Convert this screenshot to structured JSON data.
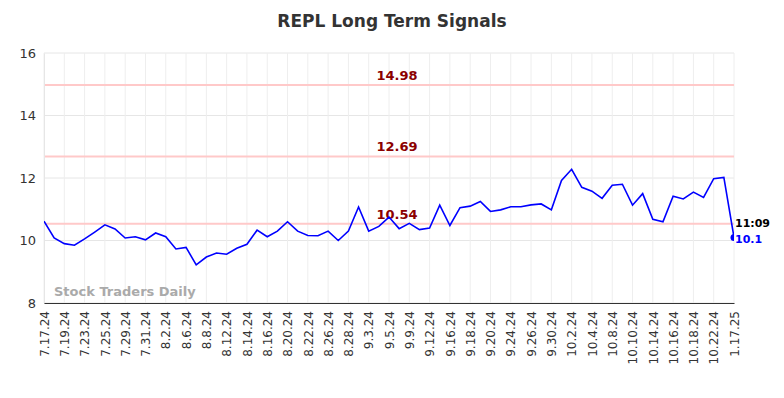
{
  "chart_data": {
    "type": "line",
    "title": "REPL Long Term Signals",
    "categories": [
      "7.17.24",
      null,
      "7.19.24",
      null,
      "7.23.24",
      null,
      "7.25.24",
      null,
      "7.29.24",
      null,
      "7.31.24",
      null,
      "8.2.24",
      null,
      "8.6.24",
      null,
      "8.8.24",
      null,
      "8.12.24",
      null,
      "8.14.24",
      null,
      "8.16.24",
      null,
      "8.20.24",
      null,
      "8.22.24",
      null,
      "8.26.24",
      null,
      "8.28.24",
      null,
      "9.3.24",
      null,
      "9.5.24",
      null,
      "9.9.24",
      null,
      "9.12.24",
      null,
      "9.16.24",
      null,
      "9.18.24",
      null,
      "9.20.24",
      null,
      "9.24.24",
      null,
      "9.26.24",
      null,
      "9.30.24",
      null,
      "10.2.24",
      null,
      "10.4.24",
      null,
      "10.8.24",
      null,
      "10.10.24",
      null,
      "10.14.24",
      null,
      "10.16.24",
      null,
      "10.18.24",
      null,
      "10.22.24",
      null,
      "1.17.25"
    ],
    "series": [
      {
        "name": "REPL",
        "color": "#0000ff",
        "values": [
          10.62,
          10.08,
          9.9,
          9.85,
          10.05,
          10.27,
          10.5,
          10.37,
          10.08,
          10.12,
          10.02,
          10.24,
          10.12,
          9.73,
          9.78,
          9.22,
          9.47,
          9.6,
          9.56,
          9.75,
          9.88,
          10.33,
          10.12,
          10.3,
          10.6,
          10.3,
          10.16,
          10.15,
          10.3,
          10.0,
          10.3,
          11.07,
          10.3,
          10.45,
          10.75,
          10.38,
          10.55,
          10.35,
          10.4,
          11.13,
          10.48,
          11.05,
          11.1,
          11.25,
          10.93,
          10.98,
          11.08,
          11.08,
          11.14,
          11.17,
          10.98,
          11.92,
          12.28,
          11.7,
          11.58,
          11.35,
          11.77,
          11.8,
          11.13,
          11.5,
          10.68,
          10.6,
          11.42,
          11.33,
          11.55,
          11.38,
          11.98,
          12.02,
          10.1
        ]
      }
    ],
    "ylim": [
      8,
      16
    ],
    "yticks": [
      8,
      10,
      12,
      14,
      16
    ],
    "grid": true,
    "reference_lines": [
      14.98,
      12.69,
      10.54
    ],
    "annotations": [
      "11:09",
      "Stock Traders Daily"
    ]
  }
}
